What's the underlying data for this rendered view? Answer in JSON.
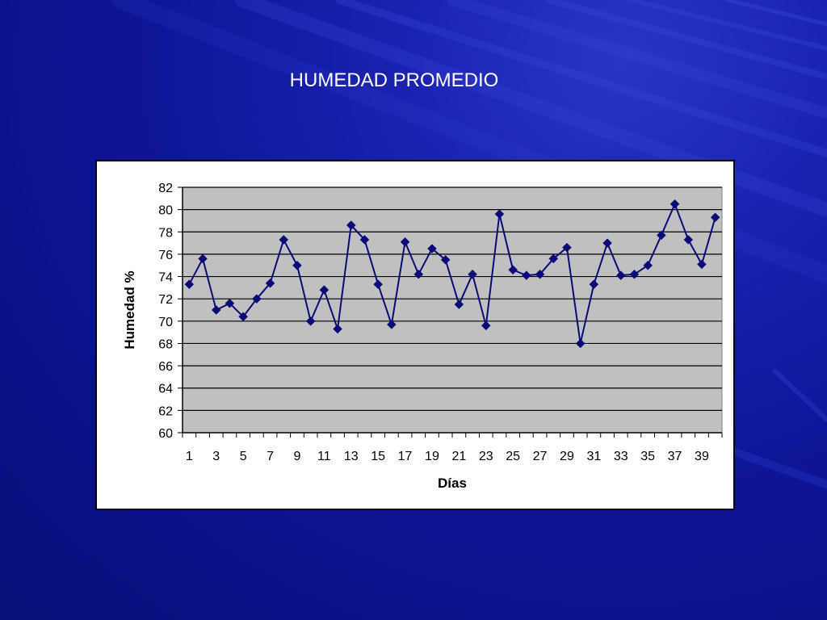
{
  "slide": {
    "title": "HUMEDAD PROMEDIO"
  },
  "colors": {
    "background": "#0d1596",
    "plot_area": "#c0c0c0",
    "series": "#0a0a78",
    "gridline": "#000000"
  },
  "chart_data": {
    "type": "line",
    "title": "HUMEDAD PROMEDIO",
    "xlabel": "Días",
    "ylabel": "Humedad %",
    "x": [
      1,
      2,
      3,
      4,
      5,
      6,
      7,
      8,
      9,
      10,
      11,
      12,
      13,
      14,
      15,
      16,
      17,
      18,
      19,
      20,
      21,
      22,
      23,
      24,
      25,
      26,
      27,
      28,
      29,
      30,
      31,
      32,
      33,
      34,
      35,
      36,
      37,
      38,
      39,
      40
    ],
    "x_tick_labels": [
      "1",
      "3",
      "5",
      "7",
      "9",
      "11",
      "13",
      "15",
      "17",
      "19",
      "21",
      "23",
      "25",
      "27",
      "29",
      "31",
      "33",
      "35",
      "37",
      "39"
    ],
    "ylim": [
      60,
      82
    ],
    "y_ticks": [
      60,
      62,
      64,
      66,
      68,
      70,
      72,
      74,
      76,
      78,
      80,
      82
    ],
    "grid": true,
    "marker": "diamond",
    "series": [
      {
        "values": [
          73.3,
          75.6,
          71.0,
          71.6,
          70.4,
          72.0,
          73.4,
          77.3,
          75.0,
          70.0,
          72.8,
          69.3,
          78.6,
          77.3,
          73.3,
          69.7,
          77.1,
          74.2,
          76.5,
          75.5,
          71.5,
          74.2,
          69.6,
          79.6,
          74.6,
          74.1,
          74.2,
          75.6,
          76.6,
          68.0,
          73.3,
          77.0,
          74.1,
          74.2,
          75.0,
          77.7,
          80.5,
          77.3,
          75.1,
          79.3
        ]
      }
    ]
  }
}
